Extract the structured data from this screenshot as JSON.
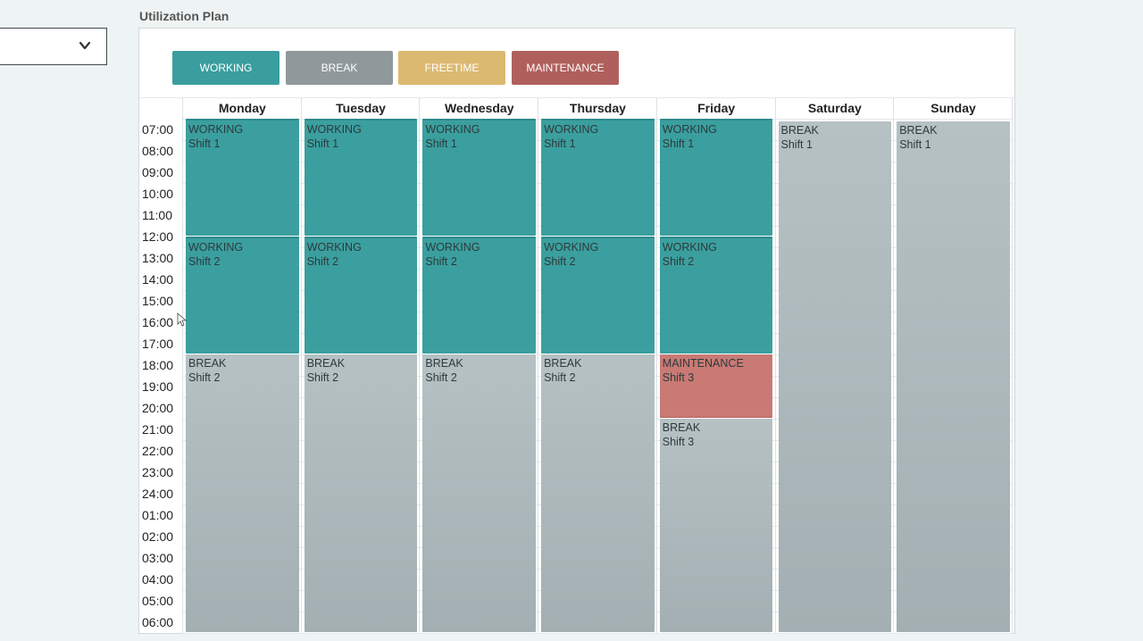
{
  "section_title": "Utilization Plan",
  "dropdown": {
    "value": "",
    "icon": "chevron-down-icon"
  },
  "legend": [
    {
      "label": "WORKING",
      "color": "#3a9e9e"
    },
    {
      "label": "BREAK",
      "color": "#8f999c"
    },
    {
      "label": "FREETIME",
      "color": "#dcb970"
    },
    {
      "label": "MAINTENANCE",
      "color": "#b0605c"
    }
  ],
  "days": [
    "Monday",
    "Tuesday",
    "Wednesday",
    "Thursday",
    "Friday",
    "Saturday",
    "Sunday"
  ],
  "hours": [
    "07:00",
    "08:00",
    "09:00",
    "10:00",
    "11:00",
    "12:00",
    "13:00",
    "14:00",
    "15:00",
    "16:00",
    "17:00",
    "18:00",
    "19:00",
    "20:00",
    "21:00",
    "22:00",
    "23:00",
    "24:00",
    "01:00",
    "02:00",
    "03:00",
    "04:00",
    "05:00",
    "06:00"
  ],
  "events": [
    {
      "day": 0,
      "type": "WORKING",
      "shift": "Shift 1",
      "start": "07:00",
      "end": "12:30"
    },
    {
      "day": 0,
      "type": "WORKING",
      "shift": "Shift 2",
      "start": "12:30",
      "end": "18:00"
    },
    {
      "day": 0,
      "type": "BREAK",
      "shift": "Shift 2",
      "start": "18:00",
      "end": "07:00"
    },
    {
      "day": 1,
      "type": "WORKING",
      "shift": "Shift 1",
      "start": "07:00",
      "end": "12:30"
    },
    {
      "day": 1,
      "type": "WORKING",
      "shift": "Shift 2",
      "start": "12:30",
      "end": "18:00"
    },
    {
      "day": 1,
      "type": "BREAK",
      "shift": "Shift 2",
      "start": "18:00",
      "end": "07:00"
    },
    {
      "day": 2,
      "type": "WORKING",
      "shift": "Shift 1",
      "start": "07:00",
      "end": "12:30"
    },
    {
      "day": 2,
      "type": "WORKING",
      "shift": "Shift 2",
      "start": "12:30",
      "end": "18:00"
    },
    {
      "day": 2,
      "type": "BREAK",
      "shift": "Shift 2",
      "start": "18:00",
      "end": "07:00"
    },
    {
      "day": 3,
      "type": "WORKING",
      "shift": "Shift 1",
      "start": "07:00",
      "end": "12:30"
    },
    {
      "day": 3,
      "type": "WORKING",
      "shift": "Shift 2",
      "start": "12:30",
      "end": "18:00"
    },
    {
      "day": 3,
      "type": "BREAK",
      "shift": "Shift 2",
      "start": "18:00",
      "end": "07:00"
    },
    {
      "day": 4,
      "type": "WORKING",
      "shift": "Shift 1",
      "start": "07:00",
      "end": "12:30"
    },
    {
      "day": 4,
      "type": "WORKING",
      "shift": "Shift 2",
      "start": "12:30",
      "end": "18:00"
    },
    {
      "day": 4,
      "type": "MAINTENANCE",
      "shift": "Shift 3",
      "start": "18:00",
      "end": "21:00"
    },
    {
      "day": 4,
      "type": "BREAK",
      "shift": "Shift 3",
      "start": "21:00",
      "end": "07:00"
    },
    {
      "day": 5,
      "type": "BREAK",
      "shift": "Shift 1",
      "start": "07:00",
      "end": "07:00"
    },
    {
      "day": 6,
      "type": "BREAK",
      "shift": "Shift 1",
      "start": "07:00",
      "end": "07:00"
    }
  ]
}
